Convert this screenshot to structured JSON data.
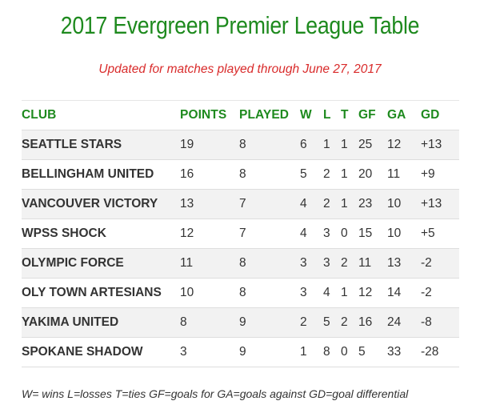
{
  "title": "2017 Evergreen Premier League Table",
  "subtitle": "Updated for matches played through June 27, 2017",
  "colors": {
    "title": "#1e8a1e",
    "subtitle": "#d92b2b",
    "header": "#1e8a1e",
    "stripe": "#f2f2f2"
  },
  "table": {
    "headers": [
      "CLUB",
      "POINTS",
      "PLAYED",
      "W",
      "L",
      "T",
      "GF",
      "GA",
      "GD"
    ],
    "rows": [
      [
        "SEATTLE STARS",
        "19",
        "8",
        "6",
        "1",
        "1",
        "25",
        "12",
        "+13"
      ],
      [
        "BELLINGHAM UNITED",
        "16",
        "8",
        "5",
        "2",
        "1",
        "20",
        "11",
        "+9"
      ],
      [
        "VANCOUVER VICTORY",
        "13",
        "7",
        "4",
        "2",
        "1",
        "23",
        "10",
        "+13"
      ],
      [
        "WPSS SHOCK",
        "12",
        "7",
        "4",
        "3",
        "0",
        "15",
        "10",
        "+5"
      ],
      [
        "OLYMPIC FORCE",
        "11",
        "8",
        "3",
        "3",
        "2",
        "11",
        "13",
        "-2"
      ],
      [
        "OLY TOWN ARTESIANS",
        "10",
        "8",
        "3",
        "4",
        "1",
        "12",
        "14",
        "-2"
      ],
      [
        "YAKIMA UNITED",
        "8",
        "9",
        "2",
        "5",
        "2",
        "16",
        "24",
        "-8"
      ],
      [
        "SPOKANE SHADOW",
        "3",
        "9",
        "1",
        "8",
        "0",
        "5",
        "33",
        "-28"
      ]
    ]
  },
  "footnote": "W= wins L=losses T=ties GF=goals for GA=goals against GD=goal differential"
}
